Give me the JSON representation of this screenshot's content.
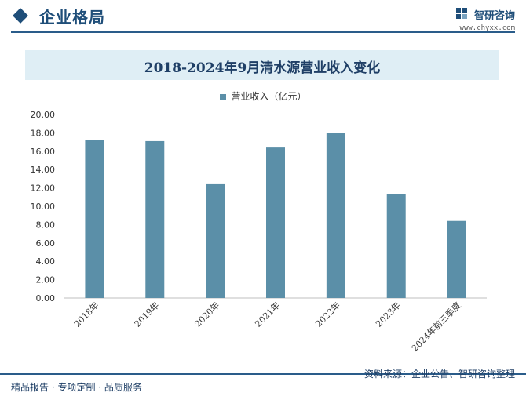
{
  "header": {
    "section_title": "企业格局",
    "logo_name": "智研咨询",
    "logo_url": "www.chyxx.com"
  },
  "footer": {
    "tagline": "精品报告 · 专项定制 · 品质服务",
    "source": "资料来源：企业公告、智研咨询整理"
  },
  "colors": {
    "bar": "#5b8fa8",
    "accent": "#1f4e79",
    "title_band": "#dfeef5"
  },
  "chart_data": {
    "type": "bar",
    "title": "2018-2024年9月清水源营业收入变化",
    "categories": [
      "2018年",
      "2019年",
      "2020年",
      "2021年",
      "2022年",
      "2023年",
      "2024年前三季度"
    ],
    "series": [
      {
        "name": "营业收入（亿元）",
        "values": [
          17.2,
          17.1,
          12.4,
          16.4,
          18.0,
          11.3,
          8.4
        ]
      }
    ],
    "ylim": [
      0,
      20
    ],
    "yticks": [
      "0.00",
      "2.00",
      "4.00",
      "6.00",
      "8.00",
      "10.00",
      "12.00",
      "14.00",
      "16.00",
      "18.00",
      "20.00"
    ],
    "grid": false,
    "legend_position": "top-center"
  }
}
